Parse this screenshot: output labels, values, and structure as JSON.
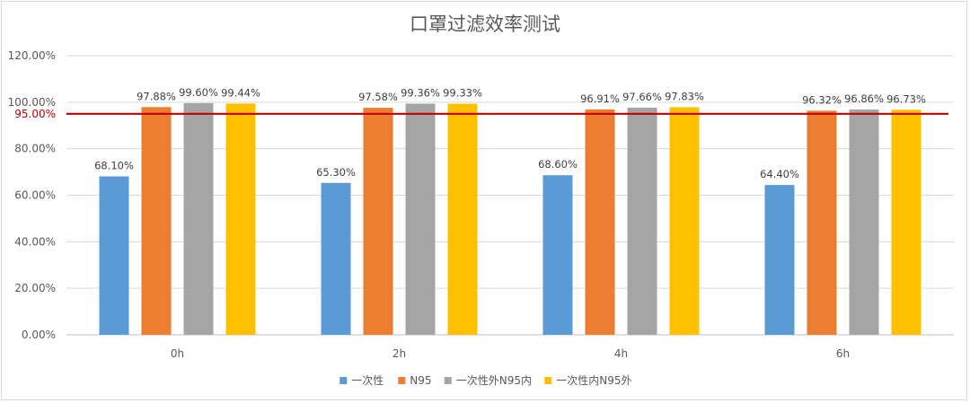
{
  "chart_data": {
    "type": "bar",
    "title": "口罩过滤效率测试",
    "xlabel": "",
    "ylabel": "",
    "categories": [
      "0h",
      "2h",
      "4h",
      "6h"
    ],
    "series": [
      {
        "name": "一次性",
        "color": "#5b9bd5",
        "values": [
          68.1,
          65.3,
          68.6,
          64.4
        ],
        "labels": [
          "68.10%",
          "65.30%",
          "68.60%",
          "64.40%"
        ]
      },
      {
        "name": "N95",
        "color": "#ed7d31",
        "values": [
          97.88,
          97.58,
          96.91,
          96.32
        ],
        "labels": [
          "97.88%",
          "97.58%",
          "96.91%",
          "96.32%"
        ]
      },
      {
        "name": "一次性外N95内",
        "color": "#a5a5a5",
        "values": [
          99.6,
          99.36,
          97.66,
          96.86
        ],
        "labels": [
          "99.60%",
          "99.36%",
          "97.66%",
          "96.86%"
        ]
      },
      {
        "name": "一次性内N95外",
        "color": "#ffc000",
        "values": [
          99.44,
          99.33,
          97.83,
          96.73
        ],
        "labels": [
          "99.44%",
          "99.33%",
          "97.83%",
          "96.73%"
        ]
      }
    ],
    "ylim": [
      0,
      120
    ],
    "yticks": [
      0,
      20,
      40,
      60,
      80,
      100,
      120
    ],
    "ytick_labels": [
      "0.00%",
      "20.00%",
      "40.00%",
      "60.00%",
      "80.00%",
      "100.00%",
      "120.00%"
    ],
    "reference_line": {
      "value": 95,
      "label": "95.00%",
      "color": "#c00000"
    },
    "grid": true,
    "legend_position": "bottom"
  }
}
